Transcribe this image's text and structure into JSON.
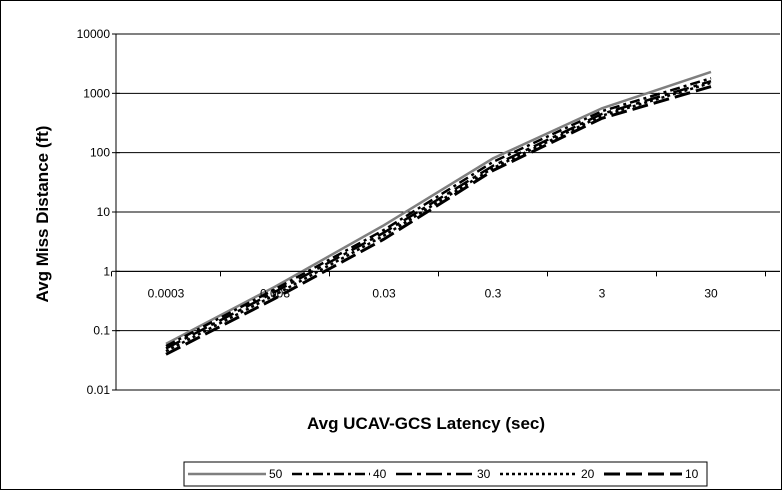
{
  "chart_data": {
    "type": "line",
    "xlabel": "Avg UCAV-GCS Latency (sec)",
    "ylabel": "Avg Miss Distance (ft)",
    "x_scale": "log",
    "y_scale": "log",
    "x_tick_labels": [
      "0.0003",
      "0.003",
      "0.03",
      "0.3",
      "3",
      "30"
    ],
    "y_tick_labels": [
      "0.01",
      "0.1",
      "1",
      "10",
      "100",
      "1000",
      "10000"
    ],
    "xlim": [
      0.0003,
      30
    ],
    "ylim": [
      0.01,
      10000
    ],
    "grid": "horizontal",
    "legend_position": "bottom",
    "x": [
      0.0003,
      0.003,
      0.03,
      0.3,
      3,
      30
    ],
    "series": [
      {
        "name": "50",
        "values": [
          0.06,
          0.55,
          6,
          80,
          560,
          2300
        ],
        "color": "#7f7f7f",
        "dash": "solid"
      },
      {
        "name": "40",
        "values": [
          0.055,
          0.5,
          5,
          70,
          500,
          1800
        ],
        "color": "#000000",
        "dash": "dashdot"
      },
      {
        "name": "30",
        "values": [
          0.05,
          0.45,
          4.5,
          60,
          450,
          1600
        ],
        "color": "#000000",
        "dash": "longdashdot"
      },
      {
        "name": "20",
        "values": [
          0.045,
          0.4,
          4,
          55,
          420,
          1500
        ],
        "color": "#000000",
        "dash": "dot"
      },
      {
        "name": "10",
        "values": [
          0.04,
          0.35,
          3.5,
          50,
          380,
          1300
        ],
        "color": "#000000",
        "dash": "longdash"
      }
    ]
  }
}
